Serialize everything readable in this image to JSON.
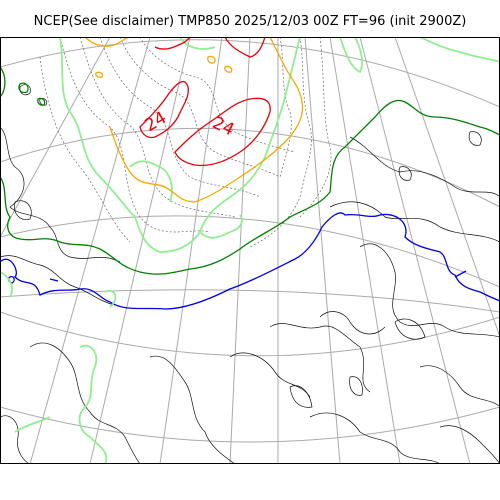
{
  "header": {
    "title": "NCEP(See disclaimer) TMP850 2025/12/03 00Z FT=96 (init 2900Z)"
  },
  "map": {
    "contour_labels": [
      "24",
      "24"
    ],
    "colors": {
      "contour_hot": "#e8000b",
      "contour_warm": "#f5a800",
      "contour_mild": "#90ee90",
      "contour_cool": "#008000",
      "contour_zero": "#0000e6",
      "coastline": "#000000",
      "graticule": "#aaaaaa",
      "minor_isotherm": "#555555"
    }
  }
}
